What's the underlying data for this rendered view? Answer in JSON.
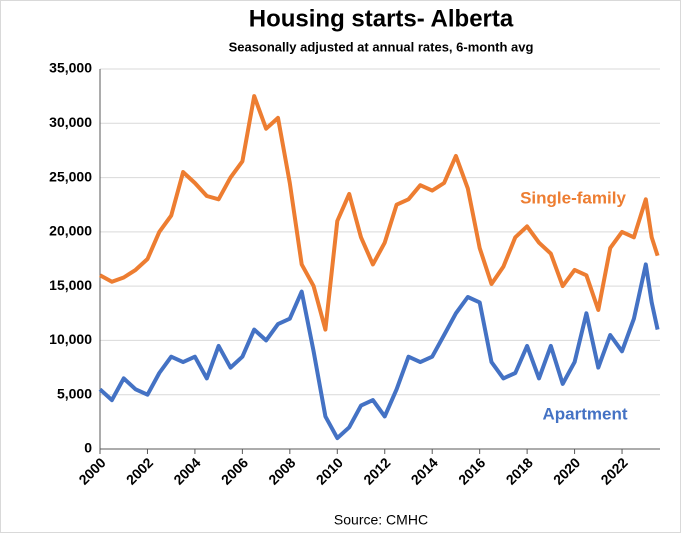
{
  "chart_data": {
    "type": "line",
    "title": "Housing starts- Alberta",
    "subtitle": "Seasonally adjusted at annual rates, 6-month avg",
    "source": "Source: CMHC",
    "x": [
      2000,
      2000.5,
      2001,
      2001.5,
      2002,
      2002.5,
      2003,
      2003.5,
      2004,
      2004.5,
      2005,
      2005.5,
      2006,
      2006.5,
      2007,
      2007.5,
      2008,
      2008.5,
      2009,
      2009.5,
      2010,
      2010.5,
      2011,
      2011.5,
      2012,
      2012.5,
      2013,
      2013.5,
      2014,
      2014.5,
      2015,
      2015.5,
      2016,
      2016.5,
      2017,
      2017.5,
      2018,
      2018.5,
      2019,
      2019.5,
      2020,
      2020.5,
      2021,
      2021.5,
      2022,
      2022.5,
      2023,
      2023.25,
      2023.5
    ],
    "series": [
      {
        "name": "Single-family",
        "color": "#ed7d31",
        "values": [
          16000,
          15400,
          15800,
          16500,
          17500,
          20000,
          21500,
          25500,
          24500,
          23300,
          23000,
          25000,
          26500,
          32500,
          29500,
          30500,
          24500,
          17000,
          15000,
          11000,
          21000,
          23500,
          19500,
          17000,
          19000,
          22500,
          23000,
          24300,
          23800,
          24500,
          27000,
          24000,
          18500,
          15200,
          16800,
          19500,
          20500,
          19000,
          18000,
          15000,
          16500,
          16000,
          12800,
          18500,
          20000,
          19500,
          23000,
          19500,
          17800
        ]
      },
      {
        "name": "Apartment",
        "color": "#4472c4",
        "values": [
          5500,
          4500,
          6500,
          5500,
          5000,
          7000,
          8500,
          8000,
          8500,
          6500,
          9500,
          7500,
          8500,
          11000,
          10000,
          11500,
          12000,
          14500,
          9000,
          3000,
          1000,
          2000,
          4000,
          4500,
          3000,
          5500,
          8500,
          8000,
          8500,
          10500,
          12500,
          14000,
          13500,
          8000,
          6500,
          7000,
          9500,
          6500,
          9500,
          6000,
          8000,
          12500,
          7500,
          10500,
          9000,
          12000,
          17000,
          13500,
          11000
        ]
      }
    ],
    "xlim": [
      2000,
      2023.6
    ],
    "xticks": [
      2000,
      2002,
      2004,
      2006,
      2008,
      2010,
      2012,
      2014,
      2016,
      2018,
      2020,
      2022
    ],
    "ylim": [
      0,
      35000
    ],
    "yticks": [
      0,
      {
        "value": 5000,
        "label": "5,000"
      },
      {
        "value": 10000,
        "label": "10,000"
      },
      {
        "value": 15000,
        "label": "15,000"
      },
      {
        "value": 20000,
        "label": "20,000"
      },
      {
        "value": 25000,
        "label": "25,000"
      },
      {
        "value": 30000,
        "label": "30,000"
      },
      {
        "value": 35000,
        "label": "35,000"
      }
    ],
    "grid": true
  }
}
